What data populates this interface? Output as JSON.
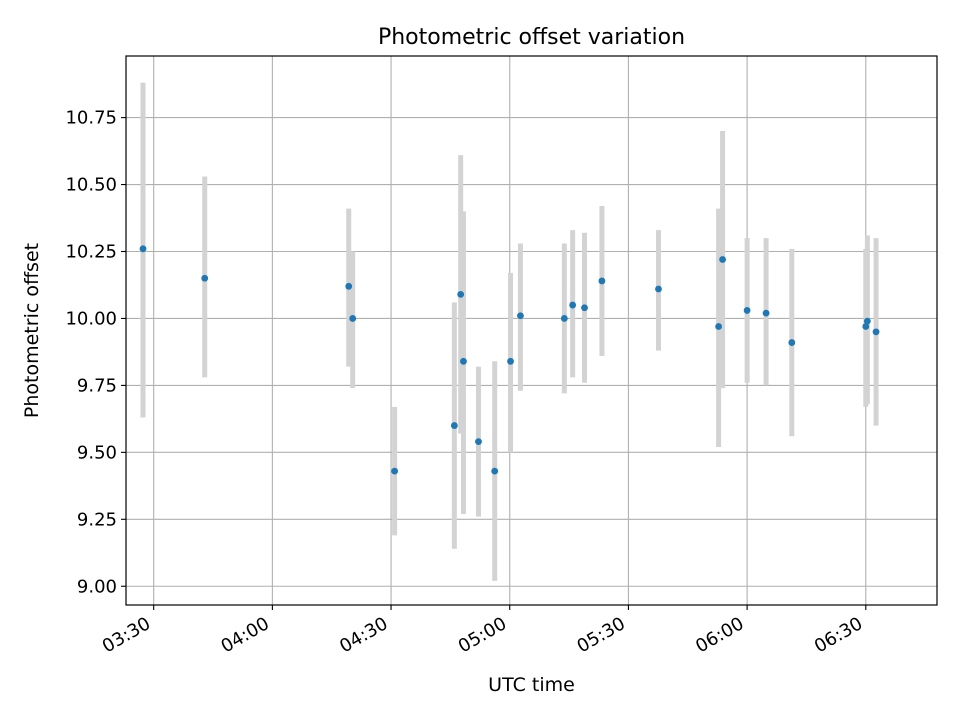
{
  "chart_data": {
    "type": "scatter",
    "title": "Photometric offset variation",
    "xlabel": "UTC time",
    "ylabel": "Photometric offset",
    "x_unit": "minutes after 00:00 UTC",
    "xlim": [
      203,
      408
    ],
    "ylim": [
      8.93,
      10.98
    ],
    "x_ticks": [
      {
        "value": 210,
        "label": "03:30"
      },
      {
        "value": 240,
        "label": "04:00"
      },
      {
        "value": 270,
        "label": "04:30"
      },
      {
        "value": 300,
        "label": "05:00"
      },
      {
        "value": 330,
        "label": "05:30"
      },
      {
        "value": 360,
        "label": "06:00"
      },
      {
        "value": 390,
        "label": "06:30"
      }
    ],
    "y_ticks": [
      {
        "value": 9.0,
        "label": "9.00"
      },
      {
        "value": 9.25,
        "label": "9.25"
      },
      {
        "value": 9.5,
        "label": "9.50"
      },
      {
        "value": 9.75,
        "label": "9.75"
      },
      {
        "value": 10.0,
        "label": "10.00"
      },
      {
        "value": 10.25,
        "label": "10.25"
      },
      {
        "value": 10.5,
        "label": "10.50"
      },
      {
        "value": 10.75,
        "label": "10.75"
      }
    ],
    "grid": true,
    "marker_color": "#1f77b4",
    "errorbar_color": "#d3d3d3",
    "points": [
      {
        "t": 207.3,
        "y": 10.26,
        "low": 9.63,
        "high": 10.88
      },
      {
        "t": 222.9,
        "y": 10.15,
        "low": 9.78,
        "high": 10.53
      },
      {
        "t": 259.3,
        "y": 10.12,
        "low": 9.82,
        "high": 10.41
      },
      {
        "t": 260.3,
        "y": 10.0,
        "low": 9.74,
        "high": 10.25
      },
      {
        "t": 270.9,
        "y": 9.43,
        "low": 9.19,
        "high": 9.67
      },
      {
        "t": 286.0,
        "y": 9.6,
        "low": 9.14,
        "high": 10.06
      },
      {
        "t": 287.6,
        "y": 10.09,
        "low": 9.57,
        "high": 10.61
      },
      {
        "t": 288.3,
        "y": 9.84,
        "low": 9.27,
        "high": 10.4
      },
      {
        "t": 292.1,
        "y": 9.54,
        "low": 9.26,
        "high": 9.82
      },
      {
        "t": 296.2,
        "y": 9.43,
        "low": 9.02,
        "high": 9.84
      },
      {
        "t": 300.2,
        "y": 9.84,
        "low": 9.5,
        "high": 10.17
      },
      {
        "t": 302.7,
        "y": 10.01,
        "low": 9.73,
        "high": 10.28
      },
      {
        "t": 313.8,
        "y": 10.0,
        "low": 9.72,
        "high": 10.28
      },
      {
        "t": 315.9,
        "y": 10.05,
        "low": 9.78,
        "high": 10.33
      },
      {
        "t": 318.9,
        "y": 10.04,
        "low": 9.76,
        "high": 10.32
      },
      {
        "t": 323.3,
        "y": 10.14,
        "low": 9.86,
        "high": 10.42
      },
      {
        "t": 337.6,
        "y": 10.11,
        "low": 9.88,
        "high": 10.33
      },
      {
        "t": 352.8,
        "y": 9.97,
        "low": 9.52,
        "high": 10.41
      },
      {
        "t": 353.8,
        "y": 10.22,
        "low": 9.74,
        "high": 10.7
      },
      {
        "t": 360.0,
        "y": 10.03,
        "low": 9.76,
        "high": 10.3
      },
      {
        "t": 364.8,
        "y": 10.02,
        "low": 9.75,
        "high": 10.3
      },
      {
        "t": 371.3,
        "y": 9.91,
        "low": 9.56,
        "high": 10.26
      },
      {
        "t": 390.0,
        "y": 9.97,
        "low": 9.67,
        "high": 10.26
      },
      {
        "t": 390.4,
        "y": 9.99,
        "low": 9.68,
        "high": 10.31
      },
      {
        "t": 392.6,
        "y": 9.95,
        "low": 9.6,
        "high": 10.3
      }
    ]
  }
}
